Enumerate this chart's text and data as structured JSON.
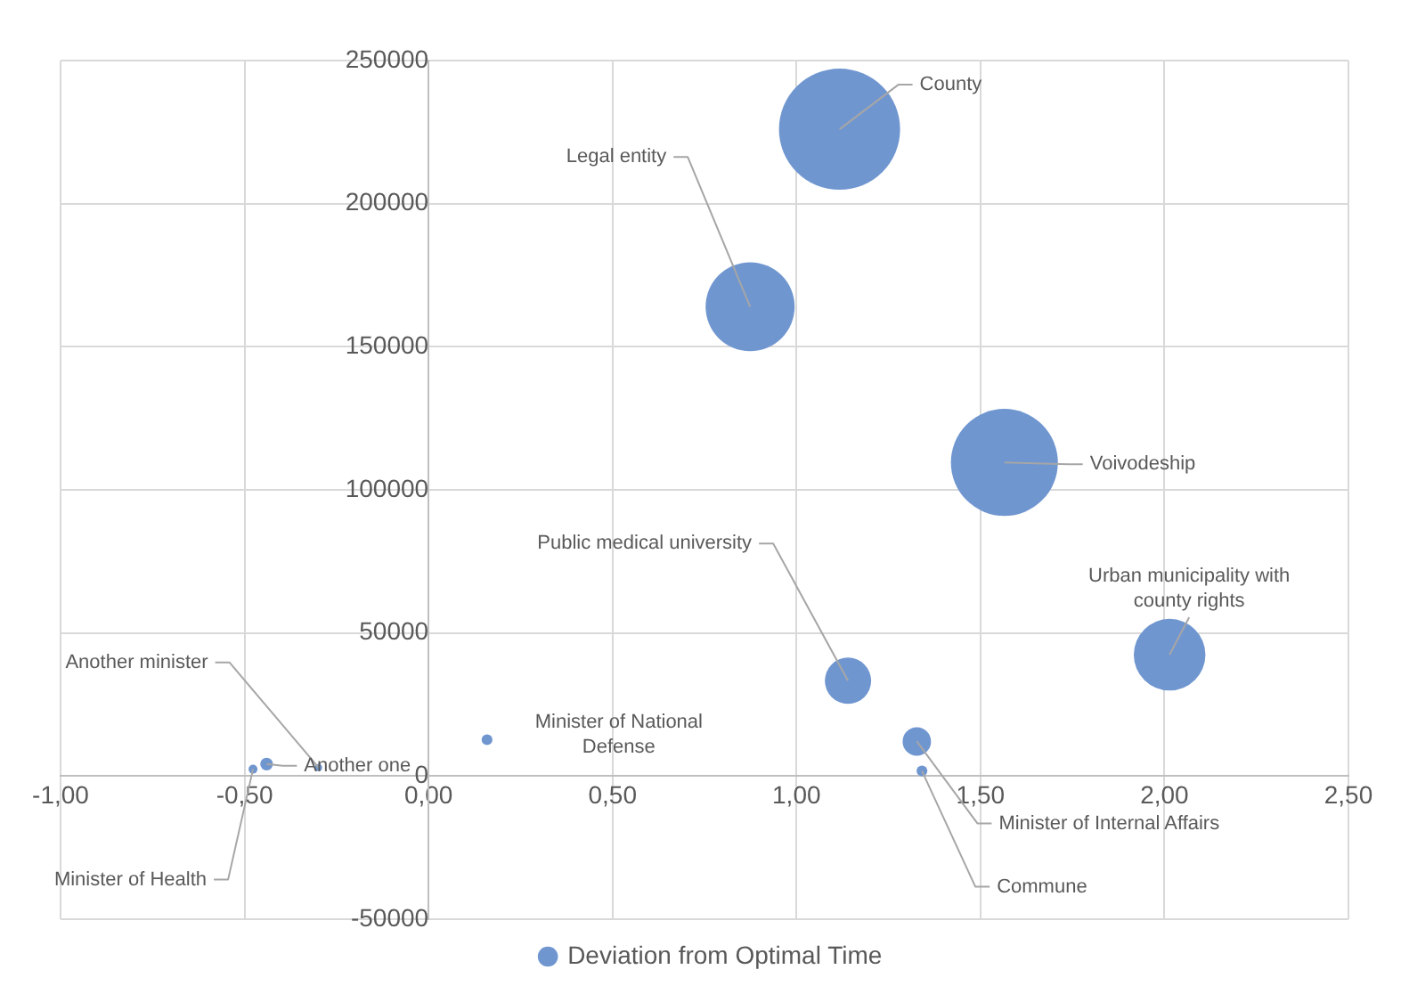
{
  "chart_data": {
    "type": "bubble",
    "series": [
      {
        "name": "Deviation from Optimal Time",
        "color": "#7096d0",
        "x": [
          1.117,
          0.874,
          1.565,
          1.14,
          2.014,
          1.327,
          1.341,
          0.159,
          -0.299,
          -0.44,
          -0.477
        ],
        "values": [
          226000,
          164000,
          109600,
          33300,
          42400,
          12100,
          1800,
          12700,
          3000,
          4200,
          2400
        ],
        "sizes": [
          1,
          0.54,
          0.78,
          0.146,
          0.35,
          0.055,
          0.008,
          0.008,
          0.0035,
          0.011,
          0.0054
        ]
      }
    ],
    "annotations": [
      {
        "text": "County",
        "x": 1.117,
        "y": 226000
      },
      {
        "text": "Legal entity",
        "x": 0.874,
        "y": 164000
      },
      {
        "text": "Voivodeship",
        "x": 1.565,
        "y": 109600
      },
      {
        "text": "Public medical university",
        "x": 1.14,
        "y": 33300
      },
      {
        "text": "Urban municipality with county rights",
        "x": 2.014,
        "y": 42400
      },
      {
        "text": "Minister of Internal Affairs",
        "x": 1.327,
        "y": 12100
      },
      {
        "text": "Commune",
        "x": 1.341,
        "y": 1800
      },
      {
        "text": "Minister of National Defense",
        "x": 0.159,
        "y": 12700
      },
      {
        "text": "Another minister",
        "x": -0.299,
        "y": 3000
      },
      {
        "text": "Another one",
        "x": -0.44,
        "y": 4200
      },
      {
        "text": "Minister of Health",
        "x": -0.477,
        "y": 2400
      }
    ],
    "xlim": [
      -1,
      2.5
    ],
    "xticks": [
      {
        "value": -1,
        "label": "-1,00"
      },
      {
        "value": -0.5,
        "label": "-0,50"
      },
      {
        "value": 0,
        "label": "0,00"
      },
      {
        "value": 0.5,
        "label": "0,50"
      },
      {
        "value": 1,
        "label": "1,00"
      },
      {
        "value": 1.5,
        "label": "1,50"
      },
      {
        "value": 2,
        "label": "2,00"
      },
      {
        "value": 2.5,
        "label": "2,50"
      }
    ],
    "ylim": [
      -50000,
      250000
    ],
    "yticks": [
      -50000,
      0,
      50000,
      100000,
      150000,
      200000,
      250000
    ],
    "grid": true,
    "legend": "bottom"
  }
}
